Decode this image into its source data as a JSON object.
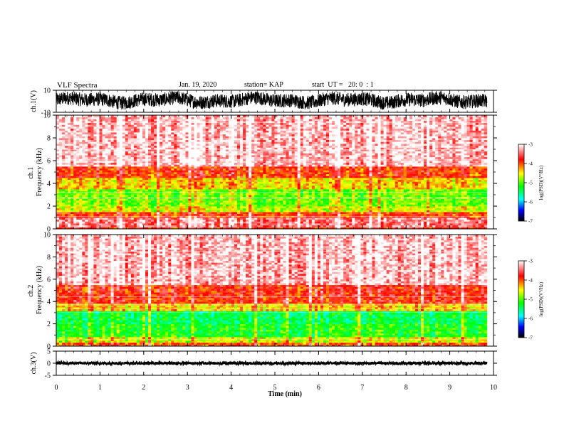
{
  "header": {
    "title": "VLF Spectra",
    "date": "Jan. 19, 2020",
    "station": "station= KAP",
    "start_ut": "start  UT =   20: 0  : 1"
  },
  "chart_data": [
    {
      "id": "ch1_waveform",
      "type": "line",
      "ylabel": "ch.1(V)",
      "ylim": [
        -10,
        10
      ],
      "yticks": [
        "10",
        "-10"
      ],
      "xlim": [
        0,
        10
      ],
      "data_extent_min": [
        0,
        9.85
      ],
      "signal_range": [
        -6,
        8
      ],
      "color": "#000000"
    },
    {
      "id": "ch1_spectrogram",
      "type": "heatmap",
      "ylabel": "ch.1\nFrequency (kHz)",
      "ylim": [
        0,
        10
      ],
      "yticks": [
        "0",
        "2",
        "4",
        "6",
        "8",
        "10"
      ],
      "xlim": [
        0,
        10
      ],
      "data_extent_min": [
        0,
        9.85
      ],
      "bands_khz": [
        {
          "from": 0,
          "to": 0.2,
          "level": -3.8
        },
        {
          "from": 0.2,
          "to": 1.0,
          "level": -3.4
        },
        {
          "from": 1.0,
          "to": 1.5,
          "level": -3.9
        },
        {
          "from": 1.5,
          "to": 2.0,
          "level": -4.6
        },
        {
          "from": 2.0,
          "to": 3.5,
          "level": -4.9
        },
        {
          "from": 3.5,
          "to": 4.5,
          "level": -4.4
        },
        {
          "from": 4.5,
          "to": 5.5,
          "level": -3.9
        },
        {
          "from": 5.5,
          "to": 10,
          "level": -3.2
        }
      ],
      "colorbar": {
        "label": "log(PSD)(V²/Hz)",
        "min": -7,
        "max": -3,
        "ticks": [
          "-3",
          "-4",
          "-5",
          "-6",
          "-7"
        ]
      }
    },
    {
      "id": "ch2_spectrogram",
      "type": "heatmap",
      "ylabel": "ch.2\nFrequency (kHz)",
      "ylim": [
        0,
        10
      ],
      "yticks": [
        "0",
        "2",
        "4",
        "6",
        "8",
        "10"
      ],
      "xlim": [
        0,
        10
      ],
      "data_extent_min": [
        0,
        9.85
      ],
      "bands_khz": [
        {
          "from": 0,
          "to": 0.3,
          "level": -4.0
        },
        {
          "from": 0.3,
          "to": 0.8,
          "level": -4.6
        },
        {
          "from": 0.8,
          "to": 2.0,
          "level": -5.2
        },
        {
          "from": 2.0,
          "to": 3.2,
          "level": -5.4
        },
        {
          "from": 3.2,
          "to": 3.8,
          "level": -4.4
        },
        {
          "from": 3.8,
          "to": 5.5,
          "level": -3.8
        },
        {
          "from": 5.5,
          "to": 10,
          "level": -3.2
        }
      ],
      "colorbar": {
        "label": "log(PSD)(V²/Hz)",
        "min": -7,
        "max": -3,
        "ticks": [
          "-3",
          "-4",
          "-5",
          "-6",
          "-7"
        ]
      }
    },
    {
      "id": "ch3_waveform",
      "type": "line",
      "ylabel": "ch.3(V)",
      "ylim": [
        -5,
        5
      ],
      "yticks": [
        "5",
        "0",
        "-5"
      ],
      "xlim": [
        0,
        10
      ],
      "data_extent_min": [
        0,
        9.85
      ],
      "signal_range": [
        -0.6,
        0.6
      ],
      "color": "#000000"
    }
  ],
  "xaxis": {
    "label": "Time (min)",
    "ticks": [
      "0",
      "1",
      "2",
      "3",
      "4",
      "5",
      "6",
      "7",
      "8",
      "9",
      "10"
    ]
  }
}
